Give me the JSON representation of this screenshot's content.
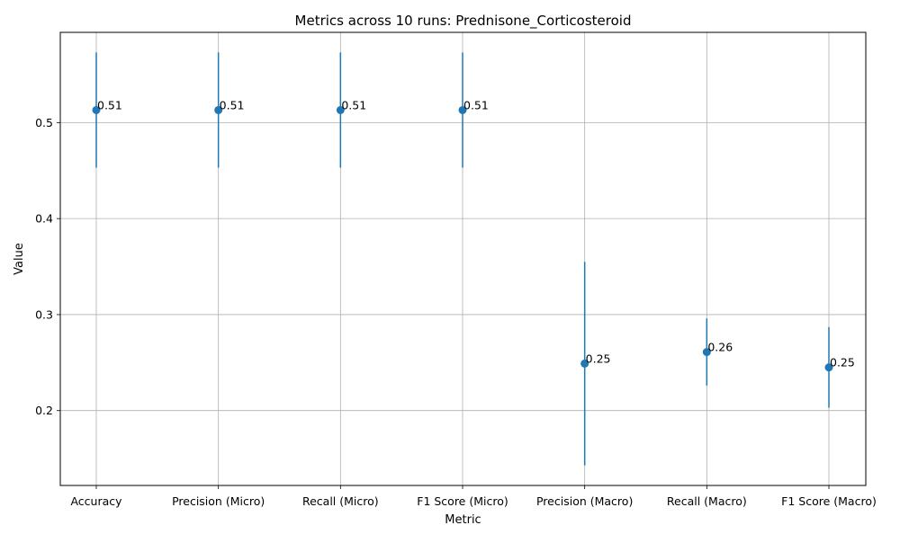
{
  "chart_data": {
    "type": "scatter",
    "title": "Metrics across 10 runs: Prednisone_Corticosteroid",
    "xlabel": "Metric",
    "ylabel": "Value",
    "categories": [
      "Accuracy",
      "Precision (Micro)",
      "Recall (Micro)",
      "F1 Score (Micro)",
      "Precision (Macro)",
      "Recall (Macro)",
      "F1 Score (Macro)"
    ],
    "values": [
      0.513,
      0.513,
      0.513,
      0.513,
      0.249,
      0.261,
      0.245
    ],
    "error_low": [
      0.453,
      0.453,
      0.453,
      0.453,
      0.143,
      0.226,
      0.203
    ],
    "error_high": [
      0.573,
      0.573,
      0.573,
      0.573,
      0.355,
      0.296,
      0.287
    ],
    "data_labels": [
      "0.51",
      "0.51",
      "0.51",
      "0.51",
      "0.25",
      "0.26",
      "0.25"
    ],
    "y_ticks": [
      "0.2",
      "0.3",
      "0.4",
      "0.5"
    ],
    "ylim": [
      0.122,
      0.594
    ],
    "grid": true,
    "color": "#1f77b4"
  }
}
